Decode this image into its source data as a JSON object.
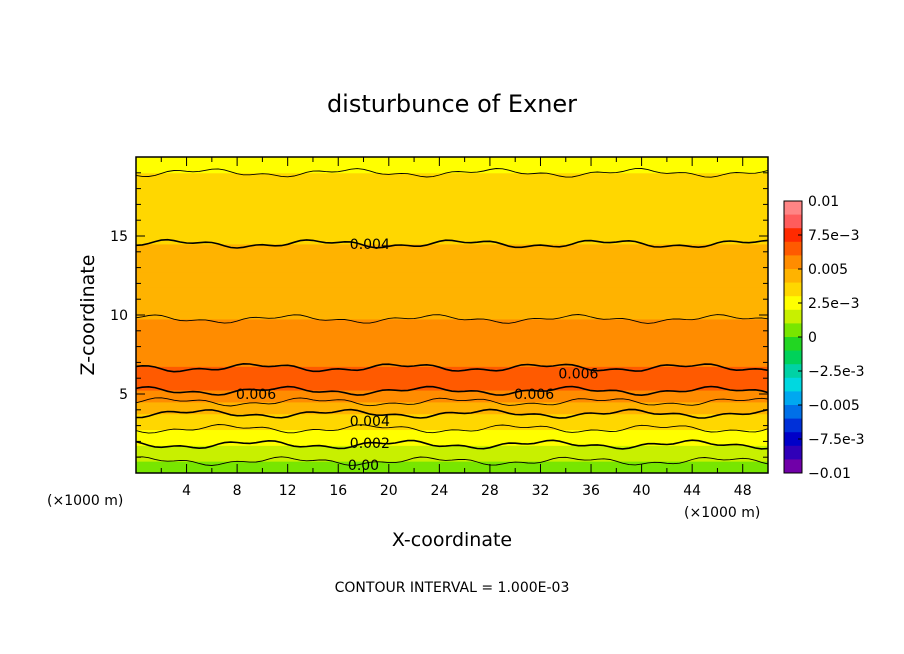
{
  "chart_data": {
    "type": "heatmap",
    "title": "disturbunce of Exner",
    "xlabel": "X-coordinate",
    "ylabel": "Z-coordinate",
    "x_unit_left": "(×1000 m)",
    "x_unit_right": "(×1000 m)",
    "footer": "CONTOUR INTERVAL = 1.000E-03",
    "xlim": [
      0,
      50
    ],
    "ylim": [
      0,
      20
    ],
    "x_ticks": [
      4,
      8,
      12,
      16,
      20,
      24,
      28,
      32,
      36,
      40,
      44,
      48
    ],
    "y_ticks": [
      5,
      10,
      15
    ],
    "z_profile": {
      "z": [
        0,
        0.5,
        1.0,
        1.5,
        2.0,
        2.5,
        3.0,
        3.5,
        4.0,
        4.5,
        5.0,
        5.5,
        6.0,
        6.5,
        7.0,
        8.0,
        9.0,
        9.5,
        10.0,
        11.0,
        12.0,
        13.0,
        14.0,
        14.5,
        15.0,
        16.0,
        17.0,
        17.5,
        18.0,
        19.0,
        20.0
      ],
      "value": [
        0.0005,
        0.0008,
        0.0012,
        0.0017,
        0.0022,
        0.0027,
        0.0032,
        0.0037,
        0.0043,
        0.005,
        0.0058,
        0.0063,
        0.0063,
        0.0061,
        0.0058,
        0.0055,
        0.0053,
        0.0051,
        0.0049,
        0.0047,
        0.0046,
        0.0044,
        0.0042,
        0.004,
        0.0039,
        0.0037,
        0.0035,
        0.0034,
        0.0032,
        0.003,
        0.0028
      ]
    },
    "contour_levels": [
      0.0,
      0.001,
      0.002,
      0.003,
      0.004,
      0.005,
      0.006
    ],
    "contour_labels": [
      {
        "text": "0.004",
        "x": 18.5,
        "z": 14.5
      },
      {
        "text": "0.006",
        "x": 9.5,
        "z": 5.0
      },
      {
        "text": "0.006",
        "x": 35.0,
        "z": 6.3
      },
      {
        "text": "0.006",
        "x": 31.5,
        "z": 5.0
      },
      {
        "text": "0.004",
        "x": 18.5,
        "z": 3.3
      },
      {
        "text": "0.002",
        "x": 18.5,
        "z": 1.9
      },
      {
        "text": "0.00",
        "x": 18.0,
        "z": 0.5
      }
    ],
    "colorbar": {
      "labels": [
        "0.01",
        "7.5e-3",
        "0.005",
        "2.5e-3",
        "0",
        "-2.5e-3",
        "-0.005",
        "-7.5e-3",
        "-0.01"
      ],
      "colors": [
        "#ff8585",
        "#ff5c5c",
        "#ff2a00",
        "#ff5a00",
        "#ff8c00",
        "#ffb300",
        "#ffd700",
        "#ffff00",
        "#c8f000",
        "#78e600",
        "#22d622",
        "#00d25a",
        "#00d2a5",
        "#00d8e0",
        "#00a8f0",
        "#0070e8",
        "#0030d8",
        "#0000c8",
        "#3000b8",
        "#7000a8"
      ]
    },
    "grid": false
  }
}
